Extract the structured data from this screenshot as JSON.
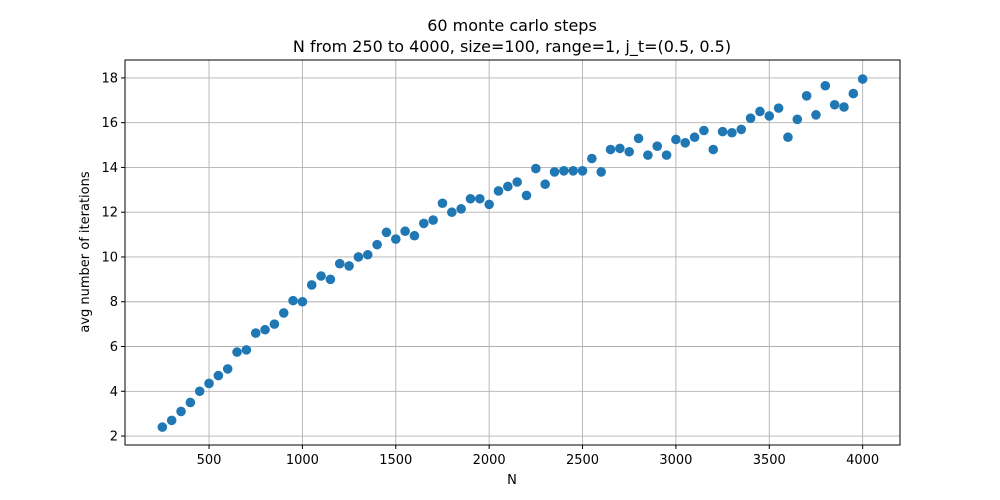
{
  "chart_data": {
    "type": "scatter",
    "title": "60 monte carlo steps",
    "subtitle": "N from 250 to 4000, size=100, range=1, j_t=(0.5, 0.5)",
    "xlabel": "N",
    "ylabel": "avg number of iterations",
    "xlim": [
      50,
      4200
    ],
    "ylim": [
      1.6,
      18.8
    ],
    "xticks": [
      500,
      1000,
      1500,
      2000,
      2500,
      3000,
      3500,
      4000
    ],
    "yticks": [
      2,
      4,
      6,
      8,
      10,
      12,
      14,
      16,
      18
    ],
    "grid": true,
    "color": "#1f77b4",
    "series": [
      {
        "x": [
          250,
          300,
          350,
          400,
          450,
          500,
          550,
          600,
          650,
          700,
          750,
          800,
          850,
          900,
          950,
          1000,
          1050,
          1100,
          1150,
          1200,
          1250,
          1300,
          1350,
          1400,
          1450,
          1500,
          1550,
          1600,
          1650,
          1700,
          1750,
          1800,
          1850,
          1900,
          1950,
          2000,
          2050,
          2100,
          2150,
          2200,
          2250,
          2300,
          2350,
          2400,
          2450,
          2500,
          2550,
          2600,
          2650,
          2700,
          2750,
          2800,
          2850,
          2900,
          2950,
          3000,
          3050,
          3100,
          3150,
          3200,
          3250,
          3300,
          3350,
          3400,
          3450,
          3500,
          3550,
          3600,
          3650,
          3700,
          3750,
          3800,
          3850,
          3900,
          3950,
          4000
        ],
        "y": [
          2.4,
          2.7,
          3.1,
          3.5,
          4.0,
          4.35,
          4.7,
          5.0,
          5.75,
          5.85,
          6.6,
          6.75,
          7.0,
          7.5,
          8.05,
          8.0,
          8.75,
          9.15,
          9.0,
          9.7,
          9.6,
          10.0,
          10.1,
          10.55,
          11.1,
          10.8,
          11.15,
          10.95,
          11.5,
          11.65,
          12.4,
          12.0,
          12.15,
          12.6,
          12.6,
          12.35,
          12.95,
          13.15,
          13.35,
          12.75,
          13.95,
          13.25,
          13.8,
          13.85,
          13.85,
          13.85,
          14.4,
          13.8,
          14.8,
          14.85,
          14.7,
          15.3,
          14.55,
          14.95,
          14.55,
          15.25,
          15.1,
          15.35,
          15.65,
          14.8,
          15.6,
          15.55,
          15.7,
          16.2,
          16.5,
          16.3,
          16.65,
          15.35,
          16.15,
          17.2,
          16.35,
          17.65,
          16.8,
          16.7,
          17.3,
          17.95
        ]
      }
    ]
  }
}
